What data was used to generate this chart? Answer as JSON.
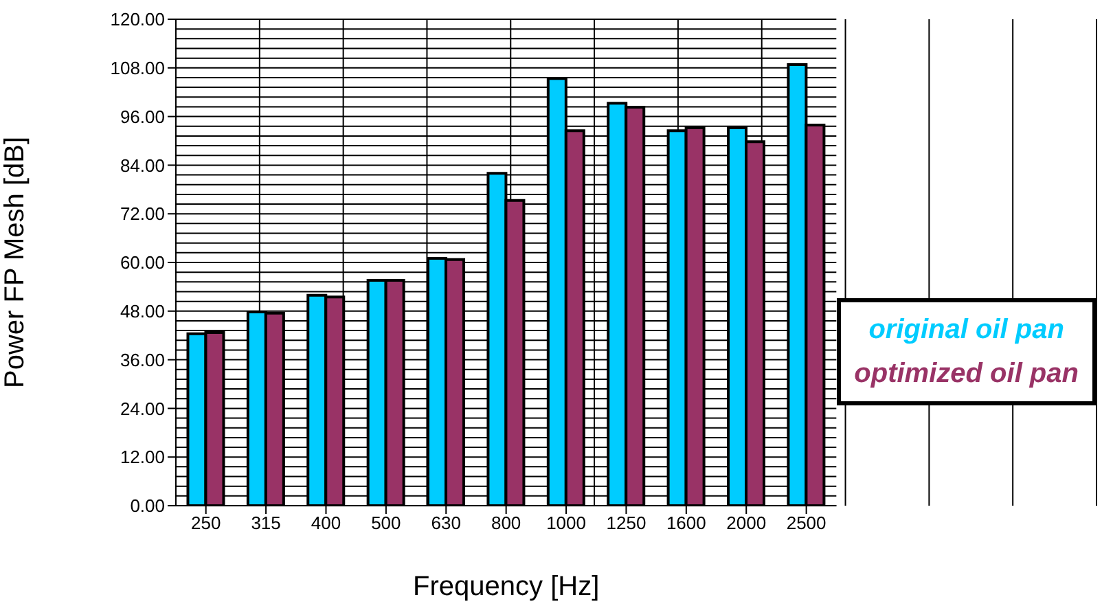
{
  "chart_data": {
    "type": "bar",
    "xlabel": "Frequency [Hz]",
    "ylabel": "Power FP Mesh [dB]",
    "categories": [
      "250",
      "315",
      "400",
      "500",
      "630",
      "800",
      "1000",
      "1250",
      "1600",
      "2000",
      "2500"
    ],
    "series": [
      {
        "name": "original oil pan",
        "color": "#00ccff",
        "values": [
          42.4,
          47.8,
          51.9,
          55.6,
          61.0,
          82.0,
          105.4,
          99.3,
          92.5,
          93.2,
          108.8
        ]
      },
      {
        "name": "optimized oil pan",
        "color": "#993366",
        "values": [
          42.7,
          47.5,
          51.5,
          55.6,
          60.7,
          75.3,
          92.5,
          98.3,
          93.2,
          89.8,
          93.9
        ]
      }
    ],
    "ylim": [
      0,
      120
    ],
    "yticks": [
      {
        "value": 0,
        "label": "0.00"
      },
      {
        "value": 12,
        "label": "12.00"
      },
      {
        "value": 24,
        "label": "24.00"
      },
      {
        "value": 36,
        "label": "36.00"
      },
      {
        "value": 48,
        "label": "48.00"
      },
      {
        "value": 60,
        "label": "60.00"
      },
      {
        "value": 72,
        "label": "72.00"
      },
      {
        "value": 84,
        "label": "84.00"
      },
      {
        "value": 96,
        "label": "96.00"
      },
      {
        "value": 108,
        "label": "108.00"
      },
      {
        "value": 120,
        "label": "120.00"
      }
    ],
    "grid": true,
    "legend": "bottom right"
  }
}
